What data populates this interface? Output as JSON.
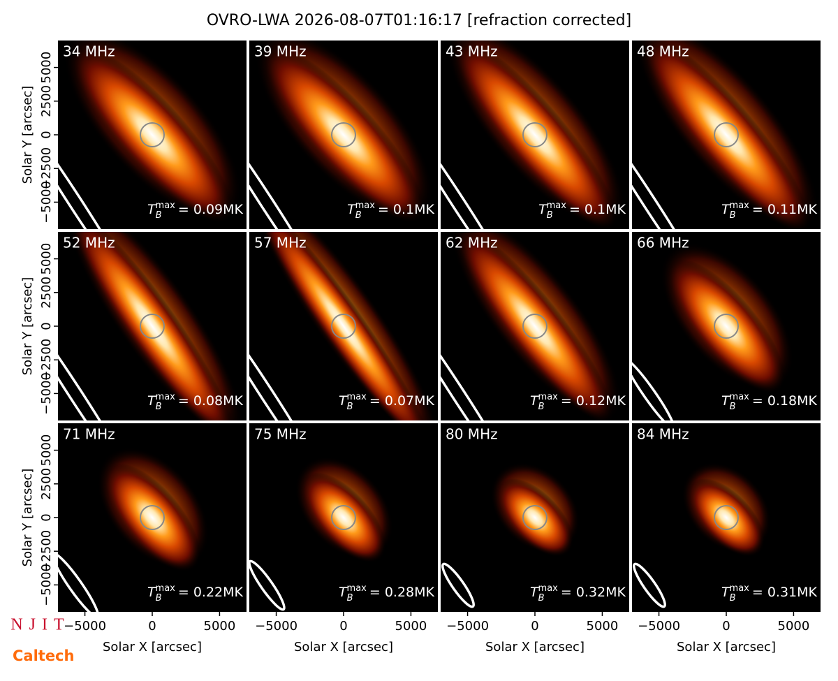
{
  "chart_data": {
    "type": "image-grid",
    "title": "OVRO-LWA 2026-08-07T01:16:17 [refraction corrected]",
    "xlabel": "Solar X [arcsec]",
    "ylabel": "Solar Y [arcsec]",
    "xlim": [
      -7000,
      7000
    ],
    "ylim": [
      -7000,
      7000
    ],
    "xticks": [
      {
        "value": -5000,
        "label": "−5000"
      },
      0,
      5000
    ],
    "yticks": [
      {
        "value": -5000,
        "label": "−5000"
      },
      {
        "value": -2500,
        "label": "−2500"
      },
      0,
      2500,
      5000
    ],
    "tb_symbol": {
      "base": "T",
      "sub": "B",
      "sup": "max"
    },
    "panels": [
      {
        "title": "34 MHz",
        "annotation": "= 0.09MK"
      },
      {
        "title": "39 MHz",
        "annotation": "= 0.1MK"
      },
      {
        "title": "43 MHz",
        "annotation": "= 0.1MK"
      },
      {
        "title": "48 MHz",
        "annotation": "= 0.11MK"
      },
      {
        "title": "52 MHz",
        "annotation": "= 0.08MK"
      },
      {
        "title": "57 MHz",
        "annotation": "= 0.07MK"
      },
      {
        "title": "62 MHz",
        "annotation": "= 0.12MK"
      },
      {
        "title": "66 MHz",
        "annotation": "= 0.18MK"
      },
      {
        "title": "71 MHz",
        "annotation": "= 0.22MK"
      },
      {
        "title": "75 MHz",
        "annotation": "= 0.28MK"
      },
      {
        "title": "80 MHz",
        "annotation": "= 0.32MK"
      },
      {
        "title": "84 MHz",
        "annotation": "= 0.31MK"
      }
    ]
  },
  "logos": {
    "njit": "NJIT",
    "caltech": "Caltech"
  }
}
